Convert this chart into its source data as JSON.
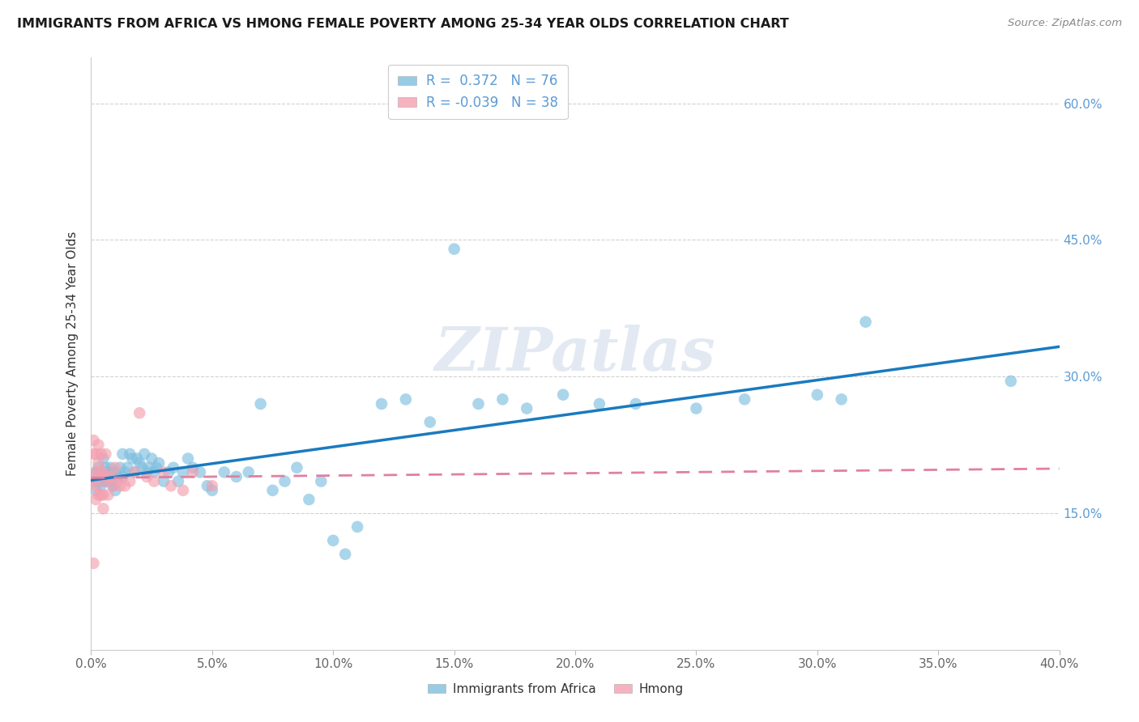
{
  "title": "IMMIGRANTS FROM AFRICA VS HMONG FEMALE POVERTY AMONG 25-34 YEAR OLDS CORRELATION CHART",
  "source": "Source: ZipAtlas.com",
  "ylabel": "Female Poverty Among 25-34 Year Olds",
  "xlim": [
    0.0,
    0.4
  ],
  "ylim": [
    0.0,
    0.65
  ],
  "xticks": [
    0.0,
    0.05,
    0.1,
    0.15,
    0.2,
    0.25,
    0.3,
    0.35,
    0.4
  ],
  "yticks_right": [
    0.15,
    0.3,
    0.45,
    0.6
  ],
  "ytick_right_labels": [
    "15.0%",
    "30.0%",
    "45.0%",
    "60.0%"
  ],
  "xtick_labels": [
    "0.0%",
    "5.0%",
    "10.0%",
    "15.0%",
    "20.0%",
    "25.0%",
    "30.0%",
    "35.0%",
    "40.0%"
  ],
  "legend_africa_R": "0.372",
  "legend_africa_N": "76",
  "legend_hmong_R": "-0.039",
  "legend_hmong_N": "38",
  "legend_africa_label": "Immigrants from Africa",
  "legend_hmong_label": "Hmong",
  "africa_color": "#7fbfdf",
  "hmong_color": "#f4a0b0",
  "africa_line_color": "#1a7abf",
  "hmong_line_color": "#e080a0",
  "watermark": "ZIPatlas",
  "africa_x": [
    0.001,
    0.002,
    0.002,
    0.003,
    0.003,
    0.004,
    0.004,
    0.005,
    0.005,
    0.006,
    0.006,
    0.007,
    0.007,
    0.008,
    0.008,
    0.009,
    0.009,
    0.01,
    0.01,
    0.011,
    0.012,
    0.013,
    0.013,
    0.014,
    0.015,
    0.016,
    0.017,
    0.018,
    0.019,
    0.02,
    0.021,
    0.022,
    0.023,
    0.024,
    0.025,
    0.026,
    0.027,
    0.028,
    0.03,
    0.032,
    0.034,
    0.036,
    0.038,
    0.04,
    0.042,
    0.045,
    0.048,
    0.05,
    0.055,
    0.06,
    0.065,
    0.07,
    0.075,
    0.08,
    0.085,
    0.09,
    0.095,
    0.1,
    0.105,
    0.11,
    0.12,
    0.13,
    0.14,
    0.15,
    0.16,
    0.17,
    0.18,
    0.195,
    0.21,
    0.225,
    0.25,
    0.27,
    0.3,
    0.31,
    0.32,
    0.38
  ],
  "africa_y": [
    0.185,
    0.195,
    0.175,
    0.185,
    0.2,
    0.18,
    0.195,
    0.185,
    0.21,
    0.19,
    0.2,
    0.185,
    0.195,
    0.2,
    0.185,
    0.195,
    0.18,
    0.195,
    0.175,
    0.19,
    0.2,
    0.19,
    0.215,
    0.195,
    0.2,
    0.215,
    0.21,
    0.195,
    0.21,
    0.205,
    0.2,
    0.215,
    0.195,
    0.2,
    0.21,
    0.195,
    0.2,
    0.205,
    0.185,
    0.195,
    0.2,
    0.185,
    0.195,
    0.21,
    0.2,
    0.195,
    0.18,
    0.175,
    0.195,
    0.19,
    0.195,
    0.27,
    0.175,
    0.185,
    0.2,
    0.165,
    0.185,
    0.12,
    0.105,
    0.135,
    0.27,
    0.275,
    0.25,
    0.44,
    0.27,
    0.275,
    0.265,
    0.28,
    0.27,
    0.27,
    0.265,
    0.275,
    0.28,
    0.275,
    0.36,
    0.295
  ],
  "hmong_x": [
    0.001,
    0.001,
    0.001,
    0.001,
    0.001,
    0.002,
    0.002,
    0.002,
    0.002,
    0.003,
    0.003,
    0.003,
    0.004,
    0.004,
    0.004,
    0.005,
    0.005,
    0.005,
    0.006,
    0.006,
    0.007,
    0.007,
    0.008,
    0.009,
    0.01,
    0.011,
    0.012,
    0.014,
    0.016,
    0.018,
    0.02,
    0.023,
    0.026,
    0.03,
    0.033,
    0.038,
    0.042,
    0.05
  ],
  "hmong_y": [
    0.19,
    0.215,
    0.23,
    0.185,
    0.095,
    0.195,
    0.18,
    0.215,
    0.165,
    0.225,
    0.205,
    0.17,
    0.195,
    0.215,
    0.17,
    0.17,
    0.195,
    0.155,
    0.185,
    0.215,
    0.19,
    0.17,
    0.19,
    0.18,
    0.2,
    0.185,
    0.18,
    0.18,
    0.185,
    0.195,
    0.26,
    0.19,
    0.185,
    0.195,
    0.18,
    0.175,
    0.195,
    0.18
  ]
}
